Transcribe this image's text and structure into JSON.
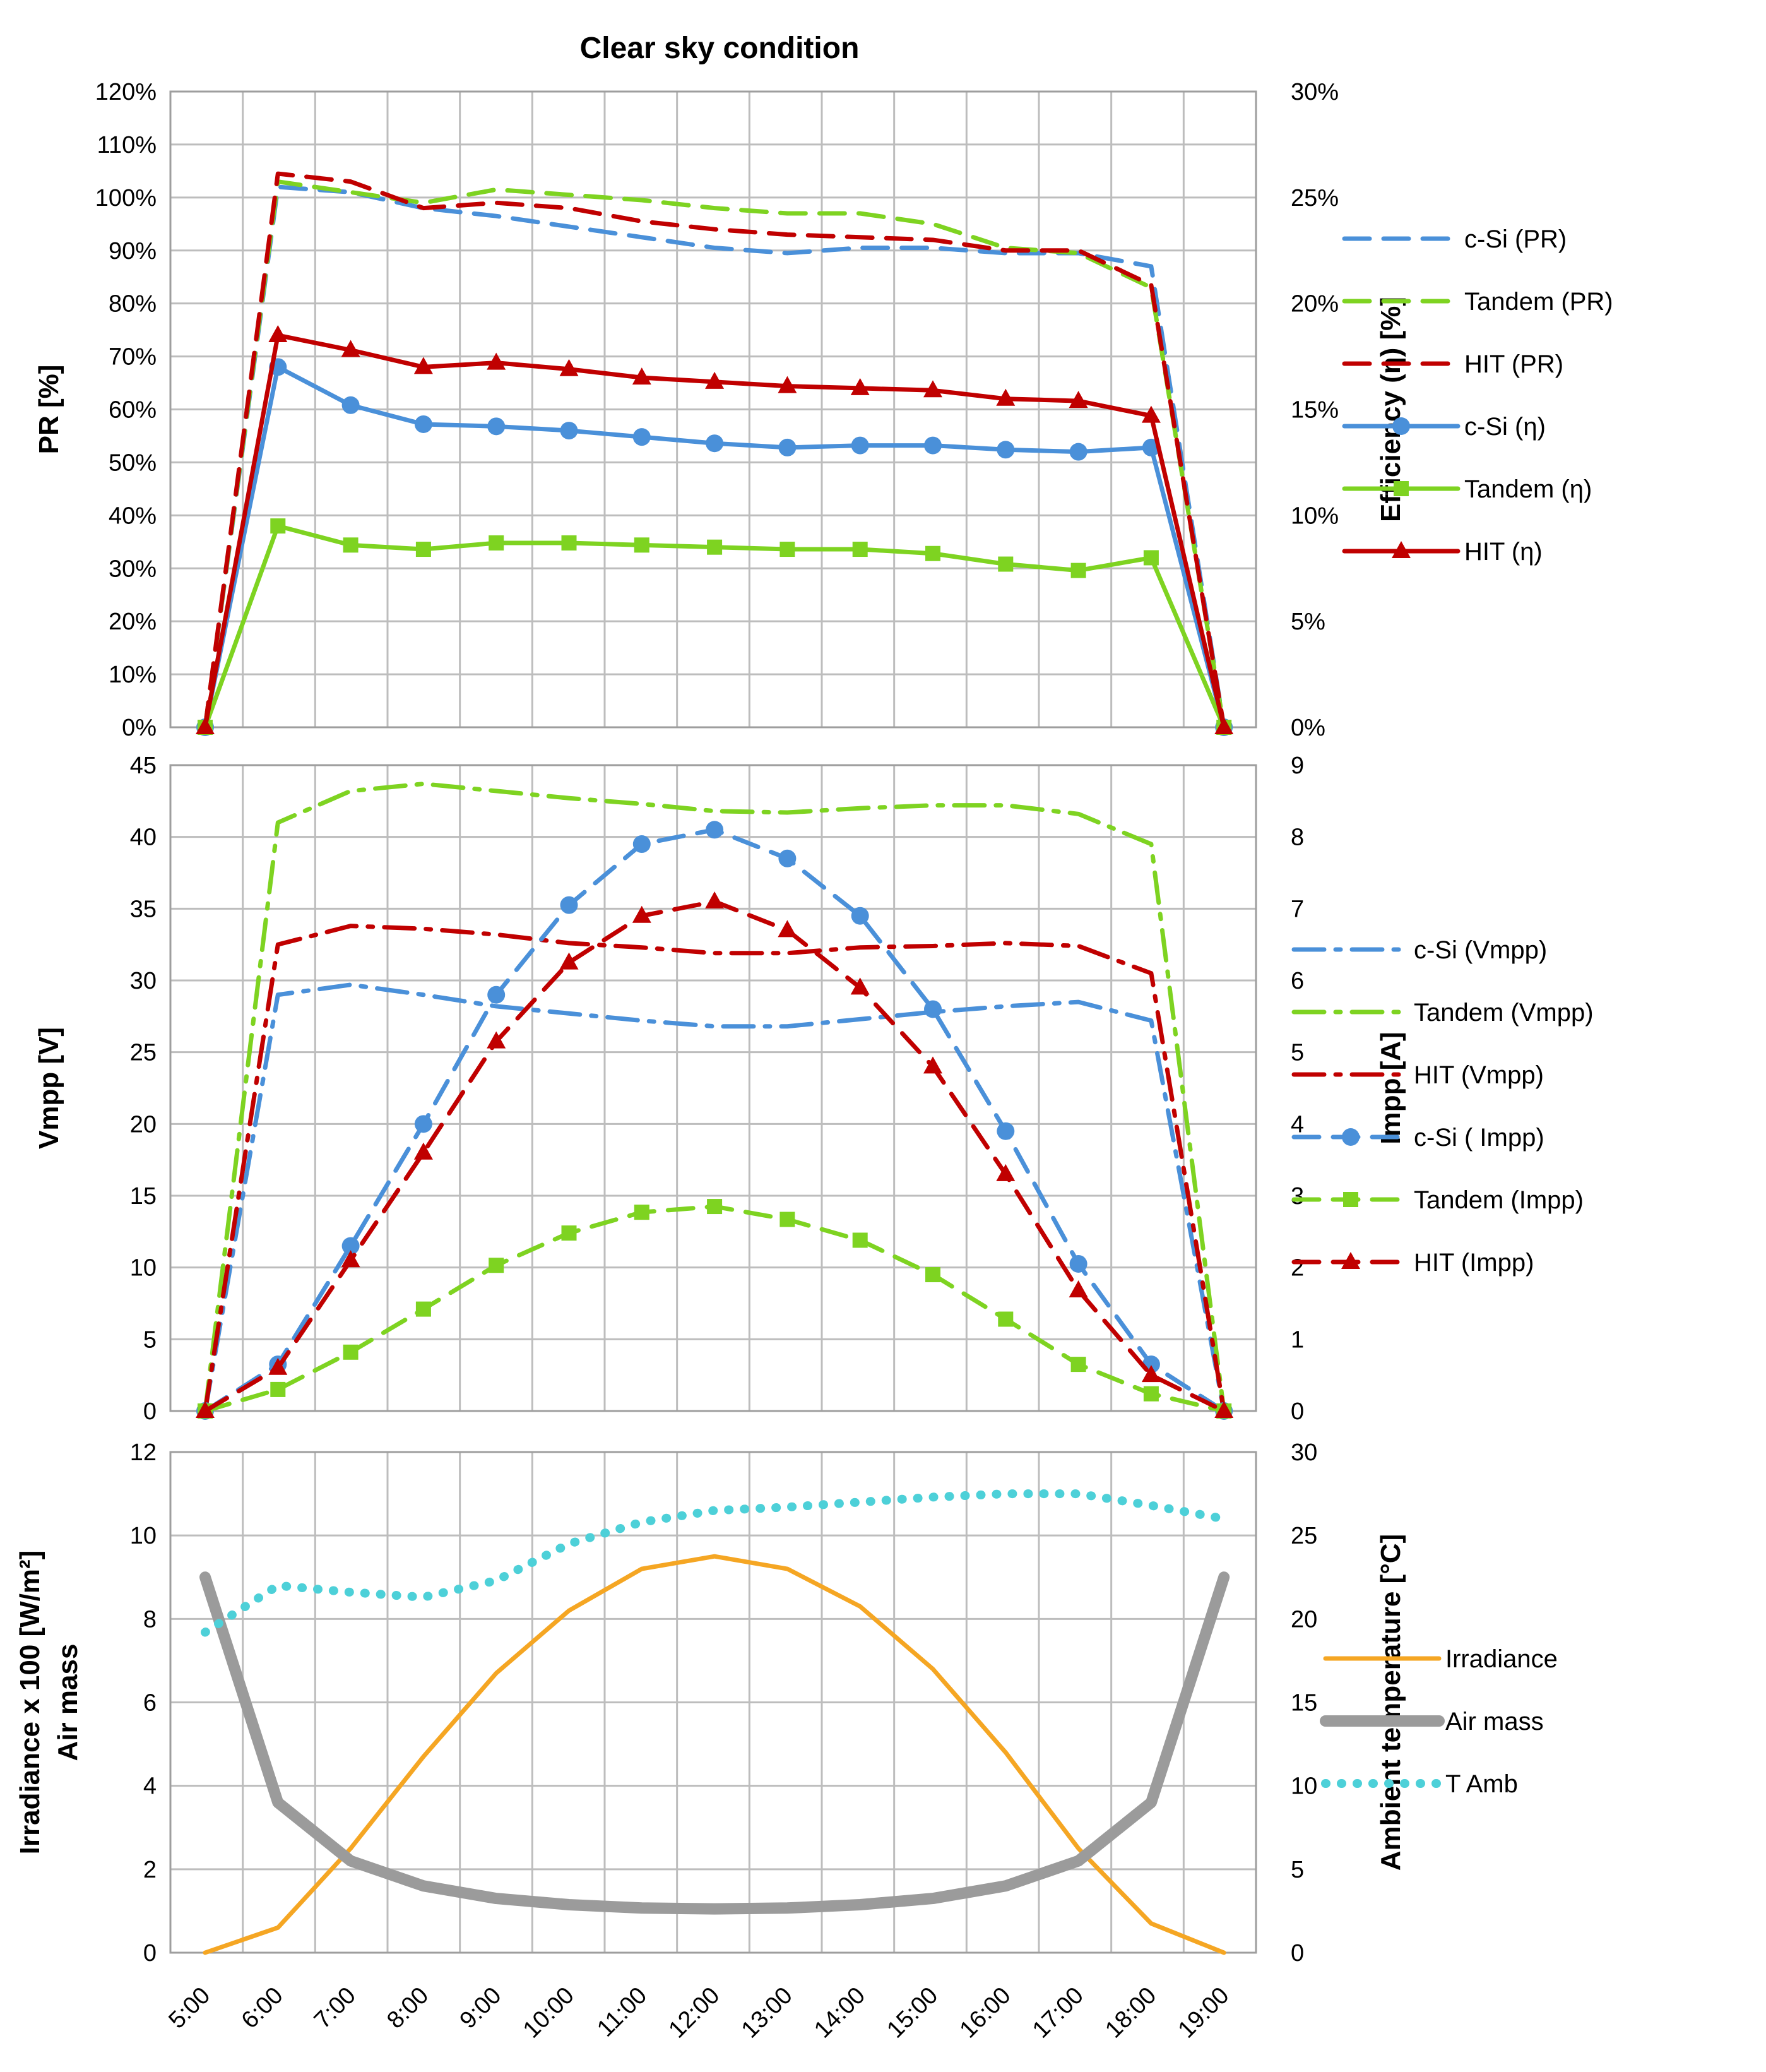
{
  "chart_data": [
    {
      "type": "line",
      "title": "Clear sky condition",
      "x": [
        "5:00",
        "6:00",
        "7:00",
        "8:00",
        "9:00",
        "10:00",
        "11:00",
        "12:00",
        "13:00",
        "14:00",
        "15:00",
        "16:00",
        "17:00",
        "18:00",
        "19:00"
      ],
      "ylabel": "PR [%]",
      "y2label": "Efficiency (η) [%]",
      "ylim": [
        0,
        120
      ],
      "y2lim": [
        0,
        30
      ],
      "yticks": [
        "0%",
        "10%",
        "20%",
        "30%",
        "40%",
        "50%",
        "60%",
        "70%",
        "80%",
        "90%",
        "100%",
        "110%",
        "120%"
      ],
      "y2ticks": [
        "0%",
        "5%",
        "10%",
        "15%",
        "20%",
        "25%",
        "30%"
      ],
      "grid": true,
      "legend": "right",
      "series": [
        {
          "name": "c-Si (PR)",
          "axis": "left",
          "color": "#4a90d9",
          "style": "dash",
          "marker": "none",
          "values": [
            0,
            102,
            101,
            98,
            96.5,
            94.5,
            92.5,
            90.5,
            89.5,
            90.5,
            90.5,
            89.5,
            89.5,
            87,
            0
          ]
        },
        {
          "name": "Tandem (PR)",
          "axis": "left",
          "color": "#7ed321",
          "style": "dash",
          "marker": "none",
          "values": [
            0,
            103,
            101,
            99,
            101.5,
            100.5,
            99.5,
            98,
            97,
            97,
            95,
            90.5,
            89.5,
            83,
            0
          ]
        },
        {
          "name": "HIT (PR)",
          "axis": "left",
          "color": "#c00000",
          "style": "dash",
          "marker": "none",
          "values": [
            0,
            104.5,
            103,
            98,
            99,
            98,
            95.5,
            94,
            93,
            92.5,
            92,
            90,
            90,
            83.5,
            0
          ]
        },
        {
          "name": "c-Si (η)",
          "axis": "right",
          "color": "#4a90d9",
          "style": "solid",
          "marker": "circle",
          "values": [
            0,
            17,
            15.2,
            14.3,
            14.2,
            14,
            13.7,
            13.4,
            13.2,
            13.3,
            13.3,
            13.1,
            13,
            13.2,
            0
          ]
        },
        {
          "name": "Tandem (η)",
          "axis": "right",
          "color": "#7ed321",
          "style": "solid",
          "marker": "square",
          "values": [
            0,
            9.5,
            8.6,
            8.4,
            8.7,
            8.7,
            8.6,
            8.5,
            8.4,
            8.4,
            8.2,
            7.7,
            7.4,
            8,
            0
          ]
        },
        {
          "name": "HIT (η)",
          "axis": "right",
          "color": "#c00000",
          "style": "solid",
          "marker": "triangle",
          "values": [
            0,
            18.5,
            17.8,
            17,
            17.2,
            16.9,
            16.5,
            16.3,
            16.1,
            16,
            15.9,
            15.5,
            15.4,
            14.7,
            0
          ]
        }
      ]
    },
    {
      "type": "line",
      "x": [
        "5:00",
        "6:00",
        "7:00",
        "8:00",
        "9:00",
        "10:00",
        "11:00",
        "12:00",
        "13:00",
        "14:00",
        "15:00",
        "16:00",
        "17:00",
        "18:00",
        "19:00"
      ],
      "ylabel": "Vmpp [V]",
      "y2label": "Impp [A]",
      "ylim": [
        0,
        45
      ],
      "y2lim": [
        0,
        9
      ],
      "yticks": [
        "0",
        "5",
        "10",
        "15",
        "20",
        "25",
        "30",
        "35",
        "40",
        "45"
      ],
      "y2ticks": [
        "0",
        "1",
        "2",
        "3",
        "4",
        "5",
        "6",
        "7",
        "8",
        "9"
      ],
      "grid": true,
      "legend": "right",
      "series": [
        {
          "name": "c-Si (Vmpp)",
          "axis": "left",
          "color": "#4a90d9",
          "style": "dashdot",
          "marker": "none",
          "values": [
            0,
            29,
            29.7,
            29,
            28.2,
            27.7,
            27.2,
            26.8,
            26.8,
            27.3,
            27.8,
            28.2,
            28.5,
            27.2,
            0
          ]
        },
        {
          "name": "Tandem (Vmpp)",
          "axis": "left",
          "color": "#7ed321",
          "style": "dashdot",
          "marker": "none",
          "values": [
            0,
            41,
            43.2,
            43.7,
            43.2,
            42.7,
            42.3,
            41.8,
            41.7,
            42,
            42.2,
            42.2,
            41.6,
            39.5,
            0
          ]
        },
        {
          "name": "HIT (Vmpp)",
          "axis": "left",
          "color": "#c00000",
          "style": "dashdot",
          "marker": "none",
          "values": [
            0,
            32.5,
            33.8,
            33.6,
            33.2,
            32.6,
            32.3,
            31.9,
            31.9,
            32.3,
            32.4,
            32.6,
            32.4,
            30.5,
            0
          ]
        },
        {
          "name": "c-Si ( Impp)",
          "axis": "right",
          "color": "#4a90d9",
          "style": "dash",
          "marker": "circle",
          "values": [
            0,
            0.65,
            2.3,
            4,
            5.8,
            7.05,
            7.9,
            8.1,
            7.7,
            6.9,
            5.6,
            3.9,
            2.05,
            0.65,
            0
          ]
        },
        {
          "name": "Tandem (Impp)",
          "axis": "right",
          "color": "#7ed321",
          "style": "dash",
          "marker": "square",
          "values": [
            0,
            0.3,
            0.82,
            1.42,
            2.03,
            2.48,
            2.77,
            2.85,
            2.67,
            2.38,
            1.9,
            1.28,
            0.65,
            0.24,
            0
          ]
        },
        {
          "name": "HIT (Impp)",
          "axis": "right",
          "color": "#c00000",
          "style": "dash",
          "marker": "triangle",
          "values": [
            0,
            0.6,
            2.1,
            3.6,
            5.15,
            6.25,
            6.9,
            7.1,
            6.7,
            5.9,
            4.8,
            3.3,
            1.68,
            0.5,
            0
          ]
        }
      ]
    },
    {
      "type": "line",
      "x": [
        "5:00",
        "6:00",
        "7:00",
        "8:00",
        "9:00",
        "10:00",
        "11:00",
        "12:00",
        "13:00",
        "14:00",
        "15:00",
        "16:00",
        "17:00",
        "18:00",
        "19:00"
      ],
      "xticks": [
        "5:00",
        "6:00",
        "7:00",
        "8:00",
        "9:00",
        "10:00",
        "11:00",
        "12:00",
        "13:00",
        "14:00",
        "15:00",
        "16:00",
        "17:00",
        "18:00",
        "19:00"
      ],
      "ylabel": "Irradiance x 100 [W/m²]\nAir mass",
      "ylabel_lines": [
        "Irradiance x 100 [W/m²]",
        "Air mass"
      ],
      "y2label": "Ambient temperature [°C]",
      "ylim": [
        0,
        12
      ],
      "y2lim": [
        0,
        30
      ],
      "yticks": [
        "0",
        "2",
        "4",
        "6",
        "8",
        "10",
        "12"
      ],
      "y2ticks": [
        "0",
        "5",
        "10",
        "15",
        "20",
        "25",
        "30"
      ],
      "grid": true,
      "legend": "right",
      "series": [
        {
          "name": "Irradiance",
          "axis": "left",
          "color": "#f5a623",
          "style": "solid",
          "marker": "none",
          "values": [
            0,
            0.6,
            2.5,
            4.7,
            6.7,
            8.2,
            9.2,
            9.5,
            9.2,
            8.3,
            6.8,
            4.8,
            2.5,
            0.7,
            0
          ]
        },
        {
          "name": "Air mass",
          "axis": "left",
          "color": "#9b9b9b",
          "style": "thick",
          "marker": "none",
          "values": [
            9,
            3.6,
            2.2,
            1.6,
            1.3,
            1.15,
            1.07,
            1.05,
            1.07,
            1.15,
            1.3,
            1.6,
            2.2,
            3.6,
            9
          ]
        },
        {
          "name": "T Amb",
          "axis": "right",
          "color": "#4dd0d8",
          "style": "dotted",
          "marker": "none",
          "values": [
            19.2,
            22,
            21.6,
            21.3,
            22.3,
            24.5,
            25.8,
            26.5,
            26.7,
            27,
            27.3,
            27.5,
            27.5,
            26.8,
            26
          ]
        }
      ]
    }
  ]
}
